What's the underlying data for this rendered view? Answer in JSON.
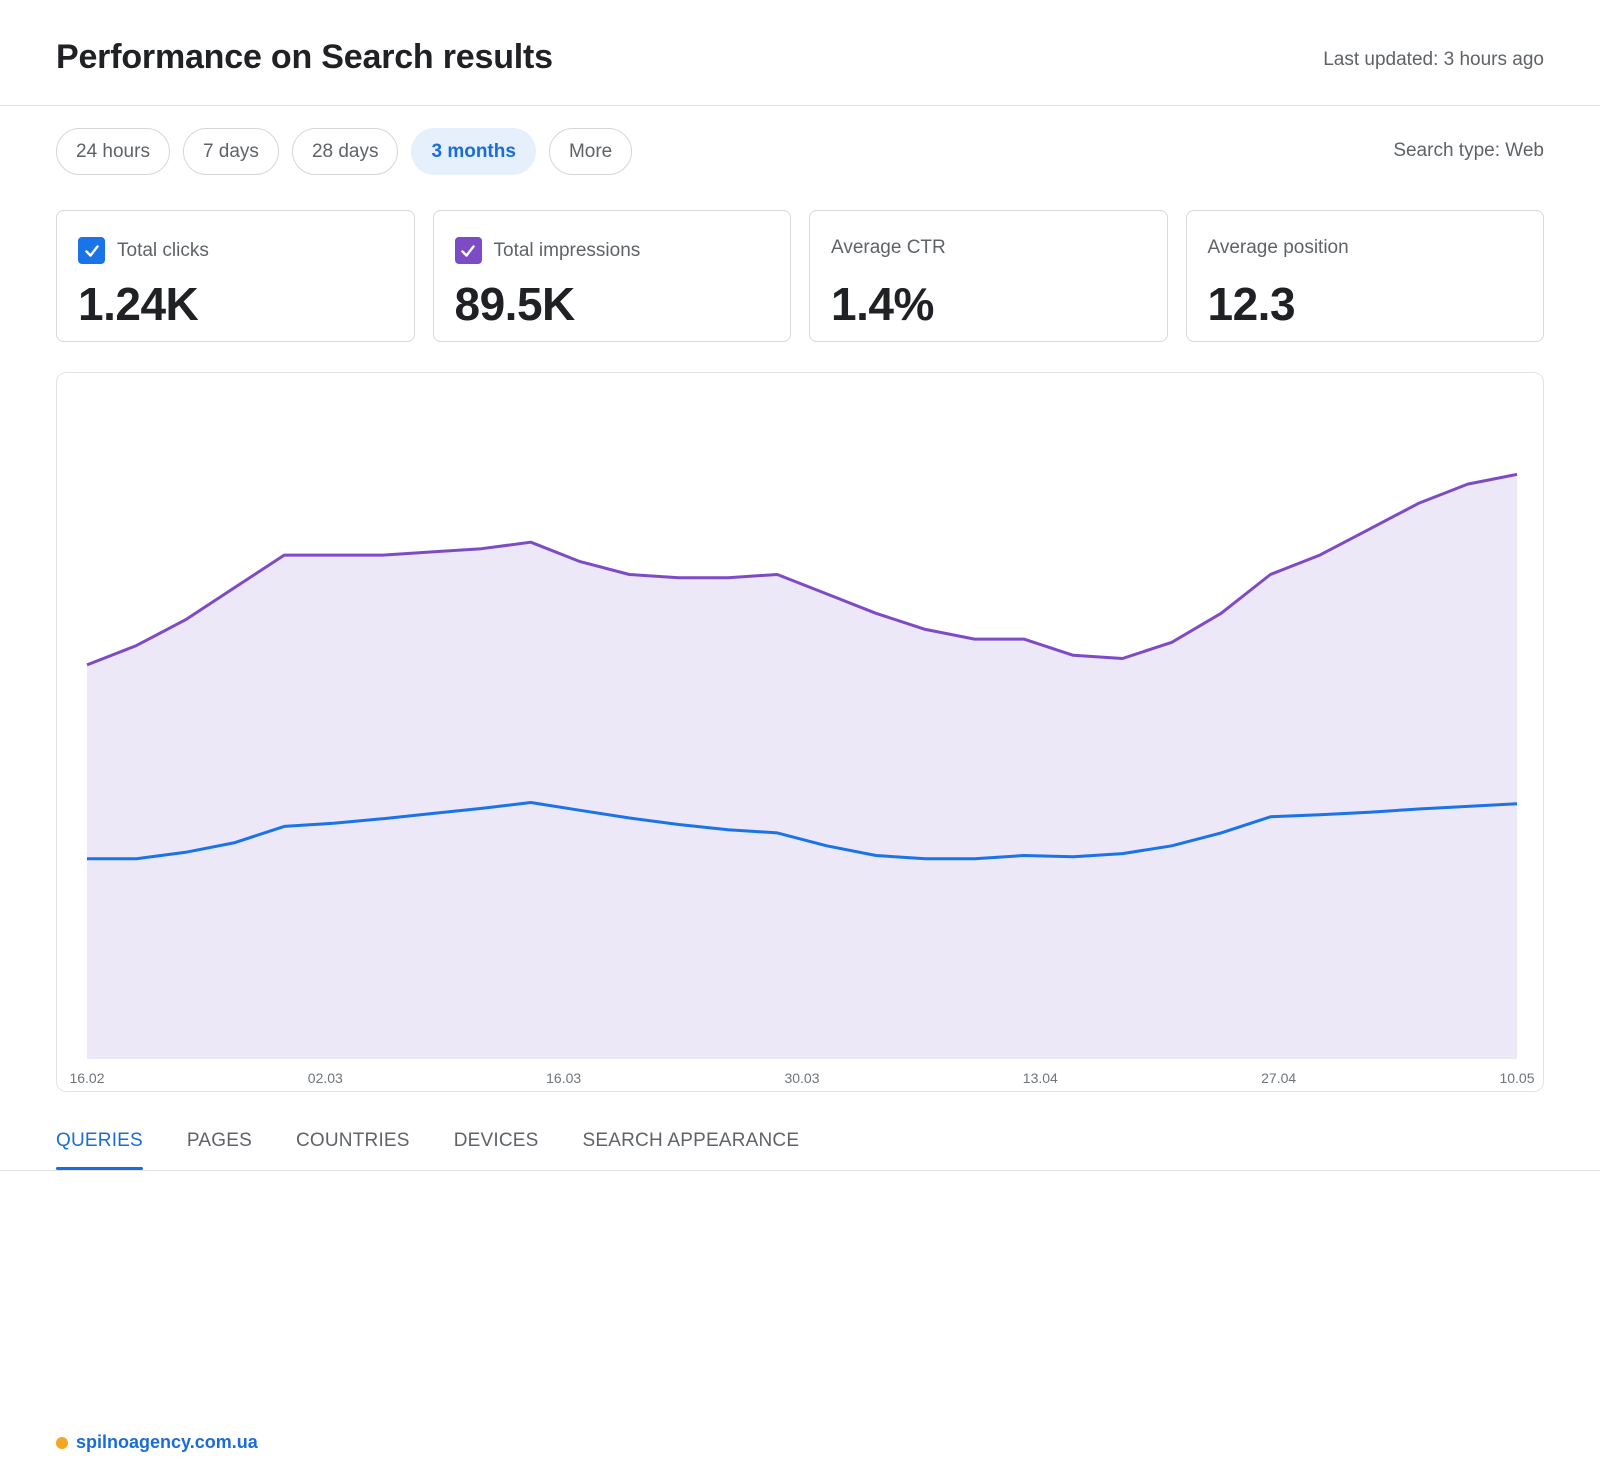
{
  "header": {
    "title": "Performance on Search results",
    "last_updated": "Last updated: 3 hours ago"
  },
  "filters": {
    "chips": [
      {
        "label": "24 hours",
        "active": false
      },
      {
        "label": "7 days",
        "active": false
      },
      {
        "label": "28 days",
        "active": false
      },
      {
        "label": "3 months",
        "active": true
      },
      {
        "label": "More",
        "active": false
      }
    ],
    "search_type": "Search type: Web"
  },
  "metrics": [
    {
      "label": "Total clicks",
      "value": "1.24K",
      "checked": true,
      "color": "#1a73e8"
    },
    {
      "label": "Total impressions",
      "value": "89.5K",
      "checked": true,
      "color": "#7e4bc6"
    },
    {
      "label": "Average CTR",
      "value": "1.4%",
      "checked": false
    },
    {
      "label": "Average position",
      "value": "12.3",
      "checked": false
    }
  ],
  "chart_data": {
    "type": "line",
    "x_ticks": [
      "16.02",
      "02.03",
      "16.03",
      "30.03",
      "13.04",
      "27.04",
      "10.05"
    ],
    "series": [
      {
        "color": "#7e4bc6",
        "fill": "#ede8f7",
        "values": [
          0.61,
          0.64,
          0.68,
          0.73,
          0.78,
          0.78,
          0.78,
          0.785,
          0.79,
          0.8,
          0.77,
          0.75,
          0.745,
          0.745,
          0.75,
          0.72,
          0.69,
          0.665,
          0.65,
          0.65,
          0.625,
          0.62,
          0.645,
          0.69,
          0.75,
          0.78,
          0.82,
          0.86,
          0.89,
          0.905
        ]
      },
      {
        "color": "#1a73e8",
        "values": [
          0.31,
          0.31,
          0.32,
          0.335,
          0.36,
          0.365,
          0.372,
          0.38,
          0.388,
          0.397,
          0.385,
          0.373,
          0.363,
          0.355,
          0.35,
          0.33,
          0.315,
          0.31,
          0.31,
          0.315,
          0.313,
          0.318,
          0.33,
          0.35,
          0.375,
          0.378,
          0.382,
          0.387,
          0.391,
          0.395
        ]
      }
    ],
    "grid": false,
    "legend": "none"
  },
  "tabs": [
    {
      "label": "QUERIES",
      "active": true
    },
    {
      "label": "PAGES",
      "active": false
    },
    {
      "label": "COUNTRIES",
      "active": false
    },
    {
      "label": "DEVICES",
      "active": false
    },
    {
      "label": "SEARCH APPEARANCE",
      "active": false
    }
  ],
  "footer": {
    "link": "spilnoagency.com.ua"
  }
}
